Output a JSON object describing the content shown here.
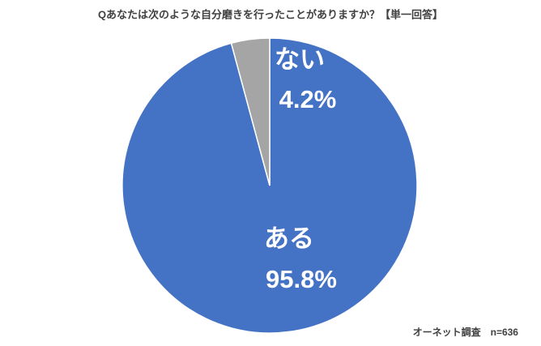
{
  "chart_data": {
    "type": "pie",
    "title": "Qあなたは次のような自分磨きを行ったことがありますか？【単一回答】",
    "categories": [
      "ある",
      "ない"
    ],
    "values": [
      95.8,
      4.2
    ],
    "value_labels": [
      "95.8%",
      "4.2%"
    ],
    "colors": [
      "#4472c4",
      "#a5a5a5"
    ],
    "note": "オーネット調査　n=636"
  }
}
